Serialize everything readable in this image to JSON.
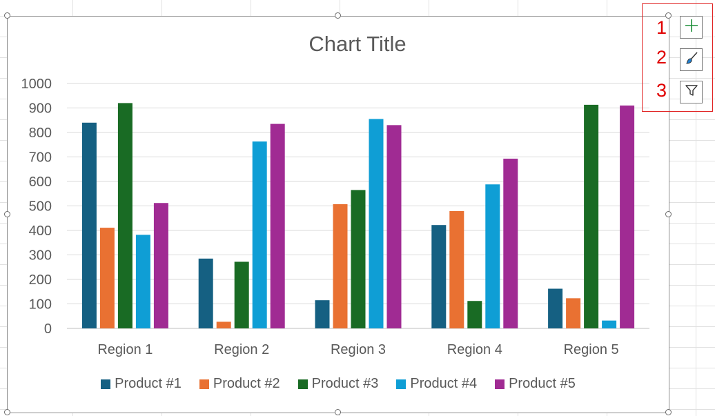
{
  "chart_data": {
    "type": "bar",
    "title": "Chart Title",
    "categories": [
      "Region 1",
      "Region 2",
      "Region 3",
      "Region 4",
      "Region 5"
    ],
    "series": [
      {
        "name": "Product #1",
        "color": "#156082",
        "values": [
          840,
          285,
          115,
          422,
          162
        ]
      },
      {
        "name": "Product #2",
        "color": "#E97132",
        "values": [
          411,
          27,
          507,
          479,
          123
        ]
      },
      {
        "name": "Product #3",
        "color": "#196B24",
        "values": [
          920,
          272,
          565,
          112,
          913
        ]
      },
      {
        "name": "Product #4",
        "color": "#0F9ED5",
        "values": [
          382,
          763,
          855,
          588,
          32
        ]
      },
      {
        "name": "Product #5",
        "color": "#A02B93",
        "values": [
          512,
          835,
          830,
          693,
          910
        ]
      }
    ],
    "ylim": [
      0,
      1000
    ],
    "yticks": [
      0,
      100,
      200,
      300,
      400,
      500,
      600,
      700,
      800,
      900,
      1000
    ],
    "grid": true,
    "legend_position": "bottom"
  },
  "toolbar": {
    "items": [
      {
        "number": "1",
        "icon": "plus-icon"
      },
      {
        "number": "2",
        "icon": "brush-icon"
      },
      {
        "number": "3",
        "icon": "filter-icon"
      }
    ],
    "highlight_color": "#e02020"
  }
}
